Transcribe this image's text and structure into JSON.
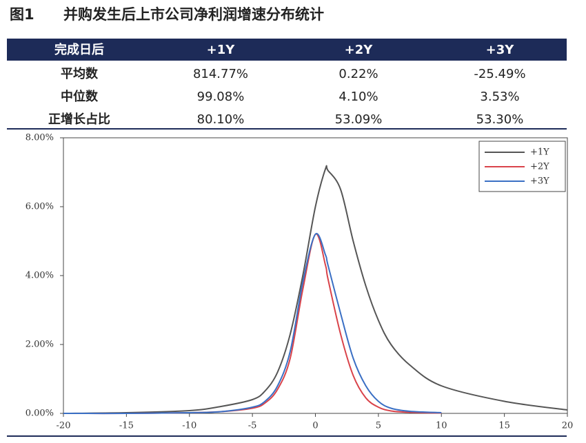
{
  "figure_label": "图1",
  "title": "并购发生后上市公司净利润增速分布统计",
  "table": {
    "header": [
      "完成日后",
      "+1Y",
      "+2Y",
      "+3Y"
    ],
    "rows": [
      [
        "平均数",
        "814.77%",
        "0.22%",
        "-25.49%"
      ],
      [
        "中位数",
        "99.08%",
        "4.10%",
        "3.53%"
      ],
      [
        "正增长占比",
        "80.10%",
        "53.09%",
        "53.30%"
      ]
    ]
  },
  "chart_data": {
    "type": "line",
    "x": [
      -20,
      -15,
      -10,
      -7.5,
      -5,
      -4,
      -3,
      -2,
      -1,
      0,
      0.8,
      1,
      2,
      3,
      4,
      5,
      6,
      7.5,
      10,
      15,
      20
    ],
    "series": [
      {
        "name": "+1Y",
        "color": "#555555",
        "values": [
          0,
          0.02,
          0.08,
          0.2,
          0.4,
          0.65,
          1.2,
          2.3,
          4.0,
          6.0,
          7.1,
          7.05,
          6.5,
          5.0,
          3.7,
          2.7,
          2.0,
          1.4,
          0.8,
          0.35,
          0.1
        ]
      },
      {
        "name": "+2Y",
        "color": "#d9434a",
        "values": [
          0,
          0,
          0.02,
          0.05,
          0.15,
          0.3,
          0.7,
          1.6,
          3.6,
          5.2,
          4.3,
          3.9,
          2.3,
          1.1,
          0.45,
          0.18,
          0.07,
          0.03,
          0.01,
          null,
          null
        ]
      },
      {
        "name": "+3Y",
        "color": "#3a6fc4",
        "values": [
          0,
          0,
          0.02,
          0.05,
          0.18,
          0.35,
          0.8,
          1.8,
          3.8,
          5.2,
          4.6,
          4.3,
          2.9,
          1.6,
          0.8,
          0.35,
          0.15,
          0.06,
          0.02,
          null,
          null
        ]
      }
    ],
    "xlim": [
      -20,
      20
    ],
    "xticks": [
      -20,
      -15,
      -10,
      -5,
      0,
      5,
      10,
      15,
      20
    ],
    "ylim": [
      0,
      8
    ],
    "yticks": [
      {
        "value": 0,
        "label": "0.00%"
      },
      {
        "value": 2,
        "label": "2.00%"
      },
      {
        "value": 4,
        "label": "4.00%"
      },
      {
        "value": 6,
        "label": "6.00%"
      },
      {
        "value": 8,
        "label": "8.00%"
      }
    ],
    "legend": "upper right"
  }
}
